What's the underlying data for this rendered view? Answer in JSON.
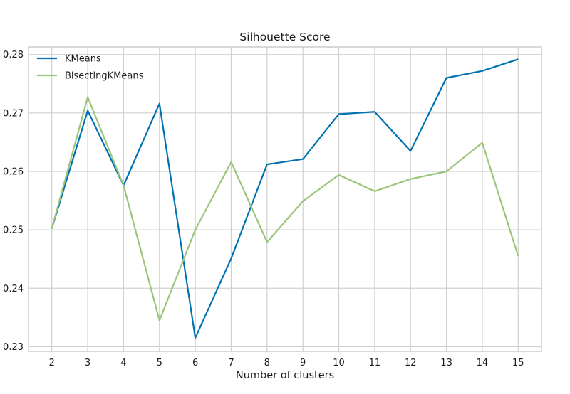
{
  "chart_data": {
    "type": "line",
    "title": "Silhouette Score",
    "xlabel": "Number of clusters",
    "ylabel": "",
    "x": [
      2,
      3,
      4,
      5,
      6,
      7,
      8,
      9,
      10,
      11,
      12,
      13,
      14,
      15
    ],
    "xticks": [
      "2",
      "3",
      "4",
      "5",
      "6",
      "7",
      "8",
      "9",
      "10",
      "11",
      "12",
      "13",
      "14",
      "15"
    ],
    "xlim": [
      1.35,
      15.65
    ],
    "yticks": [
      0.23,
      0.24,
      0.25,
      0.26,
      0.27,
      0.28
    ],
    "ytick_labels": [
      "0.23",
      "0.24",
      "0.25",
      "0.26",
      "0.27",
      "0.28"
    ],
    "ylim": [
      0.2292,
      0.2813
    ],
    "grid": true,
    "legend_position": "top-left",
    "series": [
      {
        "name": "KMeans",
        "color": "#0072B2",
        "values": [
          0.2502,
          0.2704,
          0.2576,
          0.2716,
          0.2315,
          0.2451,
          0.2612,
          0.2621,
          0.2698,
          0.2702,
          0.2635,
          0.276,
          0.2772,
          0.2792
        ]
      },
      {
        "name": "BisectingKMeans",
        "color": "#9BC57A",
        "values": [
          0.2502,
          0.2727,
          0.2576,
          0.2345,
          0.25,
          0.2616,
          0.2479,
          0.2549,
          0.2594,
          0.2566,
          0.2587,
          0.26,
          0.2649,
          0.2455
        ]
      }
    ]
  }
}
